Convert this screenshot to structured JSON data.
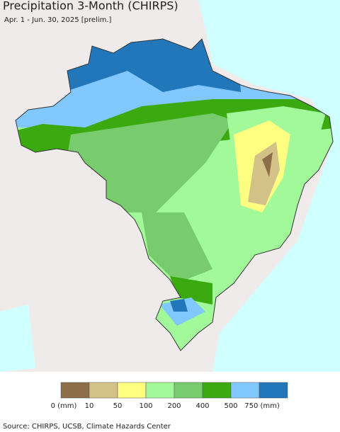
{
  "header": {
    "title": "Precipitation 3-Month (CHIRPS)",
    "subtitle": "Apr. 1 - Jun. 30, 2025 [prelim.]"
  },
  "legend": {
    "colors": [
      "#8c6e48",
      "#d3c288",
      "#feff80",
      "#a2f99a",
      "#78cc6e",
      "#3aaa10",
      "#80c8ff",
      "#2277bb"
    ],
    "labels": [
      "0 (mm)",
      "10",
      "50",
      "100",
      "200",
      "400",
      "500",
      "750 (mm)"
    ]
  },
  "source": "Source: CHIRPS, UCSB, Climate Hazards Center"
}
